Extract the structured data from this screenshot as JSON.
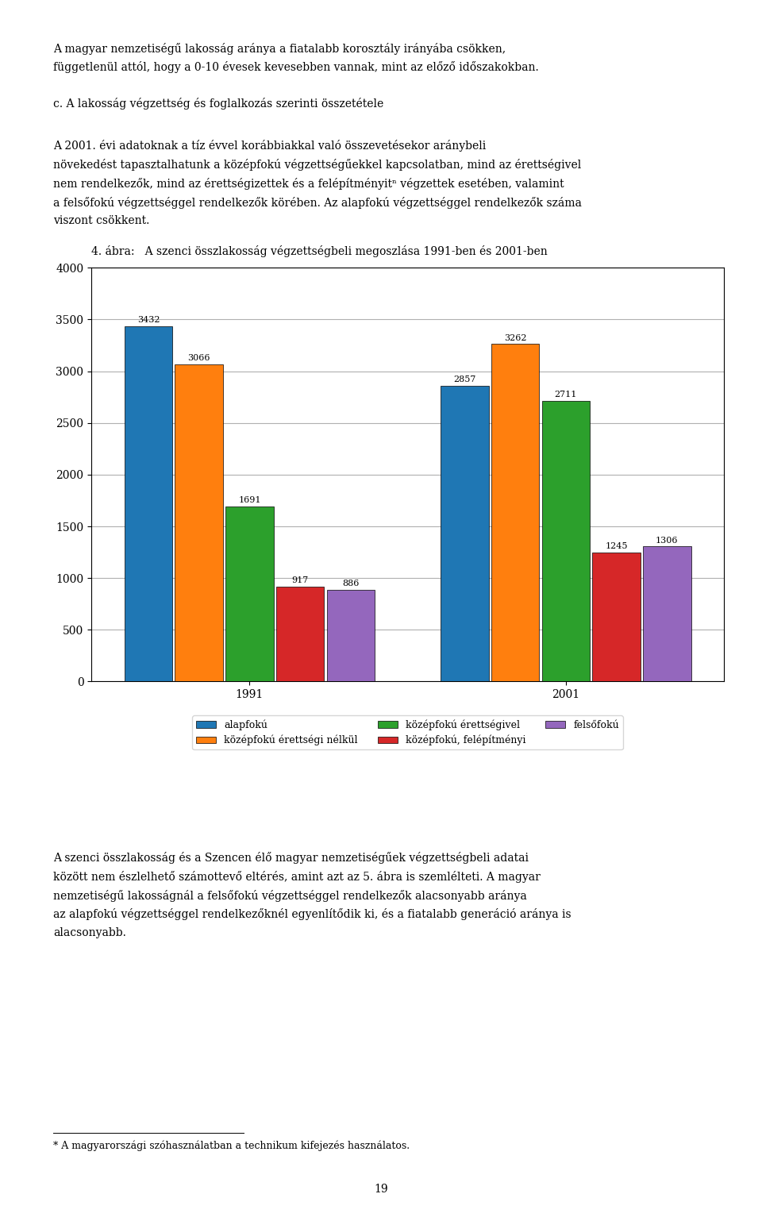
{
  "chart_data": {
    "type": "bar",
    "title": "4. ábra:   A szenci összlakosság végzettségbeli megoszlása 1991-ben és 2001-ben",
    "categories": [
      "1991",
      "2001"
    ],
    "series": [
      {
        "name": "alapfokú",
        "values": [
          3432,
          2857
        ]
      },
      {
        "name": "középfokú érettségi nélkül",
        "values": [
          3066,
          3262
        ]
      },
      {
        "name": "középfokú érettségivel",
        "values": [
          1691,
          2711
        ]
      },
      {
        "name": "középfokú, felépítményi",
        "values": [
          917,
          1245
        ]
      },
      {
        "name": "felsőfokú",
        "values": [
          886,
          1306
        ]
      }
    ],
    "ylim": [
      0,
      4000
    ],
    "yticks": [
      0,
      500,
      1000,
      1500,
      2000,
      2500,
      3000,
      3500,
      4000
    ],
    "grid": true,
    "legend": "upper center",
    "data_labels": true,
    "annotations": [
      "A magyar nemzetiségű lakosság aránya a fiatalabb korosztály irányába csökken,",
      "függetlenül attól, hogy a 0-10 évesek kevesebben vannak, mint az előző időszakokban.",
      "c. A lakosság végzettség és foglalkozás szerinti összetétele",
      "A 2001. évi adatoknak a tíz évvel korábbiakkal való összevetésekor aránybeli",
      "növekedést tapasztalhatunk a középfokú végzettségűekkel kapcsolatban, mind az érettségivel",
      "nem rendelkezők, mind az érettségizettek és a felépítményitⁿ végzettek esetében, valamint",
      "a felsőfokú végzettséggel rendelkezők körében. Az alapfokú végzettséggel rendelkezők száma",
      "viszont csökkent.",
      "A szenci összlakosság és a Szencen élő magyar nemzetiségűek végzettségbeli adatai",
      "között nem észlelhető számottevő eltérés, amint azt az 5. ábra is szemlélteti. A magyar",
      "nemzetiségű lakosságnál a felsőfokú végzettséggel rendelkezők alacsonyabb aránya",
      "az alapfokú végzettséggel rendelkezőknél egyenlítődik ki, és a fiatalabb generáció aránya is",
      "alacsonyabb.",
      "* A magyarországi szóhasználatban a technikum kifejezés használatos.",
      "19"
    ]
  }
}
